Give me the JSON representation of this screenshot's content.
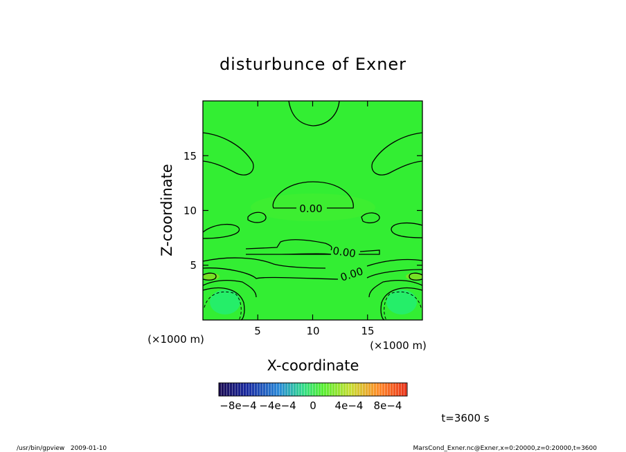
{
  "chart_data": {
    "type": "contour",
    "title": "disturbunce of Exner",
    "xlabel": "X-coordinate",
    "ylabel": "Z-coordinate",
    "x_unit": "(×1000 m)",
    "y_unit": "(×1000 m)",
    "xlim": [
      0,
      20
    ],
    "ylim": [
      0,
      20
    ],
    "x_ticks": [
      5,
      10,
      15
    ],
    "y_ticks": [
      5,
      10,
      15
    ],
    "contour_labels": [
      {
        "text": "0.00",
        "x": 9.6,
        "y": 10.1
      },
      {
        "text": "0.00",
        "x": 12.7,
        "y": 6.1
      },
      {
        "text": "0.00",
        "x": 13.5,
        "y": 4.1
      }
    ],
    "colorbar": {
      "min": -0.001,
      "max": 0.001,
      "tick_labels": [
        "−8e−4",
        "−4e−4",
        "0",
        "4e−4",
        "8e−4"
      ],
      "colors_low": "#20105a",
      "colors_mid": "#33ff33",
      "colors_high": "#ff4d1a"
    },
    "field_color": "#33ee33",
    "time_label": "t=3600 s"
  },
  "footer": {
    "left": "/usr/bin/gpview   2009-01-10",
    "right": "MarsCond_Exner.nc@Exner,x=0:20000,z=0:20000,t=3600"
  }
}
